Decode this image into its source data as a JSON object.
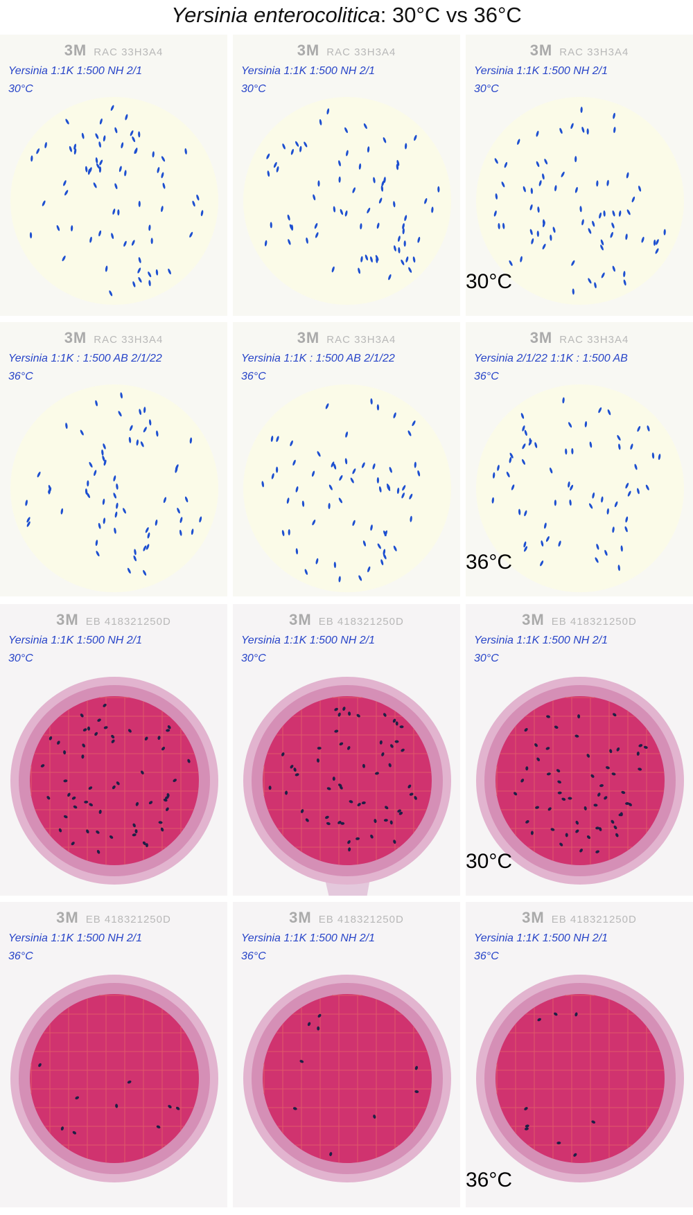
{
  "title": {
    "species": "Yersinia enterocolitica",
    "rest": ": 30°C vs 36°C"
  },
  "rows": [
    {
      "label": "30°C",
      "plates": [
        {
          "brand": "3M",
          "code": "RAC 33H3A4",
          "notes": [
            "Yersinia 1:1K 1:500 NH 2/1",
            "30°C"
          ]
        },
        {
          "brand": "3M",
          "code": "RAC 33H3A4",
          "notes": [
            "Yersinia 1:1K 1:500 NH 2/1",
            "30°C"
          ]
        },
        {
          "brand": "3M",
          "code": "RAC 33H3A4",
          "notes": [
            "Yersinia 1:1K 1:500 NH 2/1",
            "30°C"
          ]
        }
      ]
    },
    {
      "label": "36°C",
      "plates": [
        {
          "brand": "3M",
          "code": "RAC 33H3A4",
          "notes": [
            "Yersinia 1:1K : 1:500 AB 2/1/22",
            "36°C"
          ]
        },
        {
          "brand": "3M",
          "code": "RAC 33H3A4",
          "notes": [
            "Yersinia 1:1K : 1:500 AB 2/1/22",
            "36°C"
          ]
        },
        {
          "brand": "3M",
          "code": "RAC 33H3A4",
          "notes": [
            "Yersinia 2/1/22 1:1K : 1:500 AB",
            "36°C"
          ]
        }
      ]
    },
    {
      "label": "30°C",
      "plates": [
        {
          "brand": "3M",
          "code": "EB 418321250D",
          "notes": [
            "Yersinia 1:1K 1:500 NH 2/1",
            "30°C"
          ]
        },
        {
          "brand": "3M",
          "code": "EB 418321250D",
          "notes": [
            "Yersinia 1:1K 1:500 NH 2/1",
            "30°C"
          ]
        },
        {
          "brand": "3M",
          "code": "EB 418321250D",
          "notes": [
            "Yersinia 1:1K 1:500 NH 2/1",
            "30°C"
          ]
        }
      ]
    },
    {
      "label": "36°C",
      "plates": [
        {
          "brand": "3M",
          "code": "EB 418321250D",
          "notes": [
            "Yersinia 1:1K 1:500 NH 2/1",
            "36°C"
          ]
        },
        {
          "brand": "3M",
          "code": "EB 418321250D",
          "notes": [
            "Yersinia 1:1K 1:500 NH 2/1",
            "36°C"
          ]
        },
        {
          "brand": "3M",
          "code": "EB 418321250D",
          "notes": [
            "Yersinia 1:1K 1:500 NH 2/1",
            "36°C"
          ]
        }
      ]
    }
  ]
}
